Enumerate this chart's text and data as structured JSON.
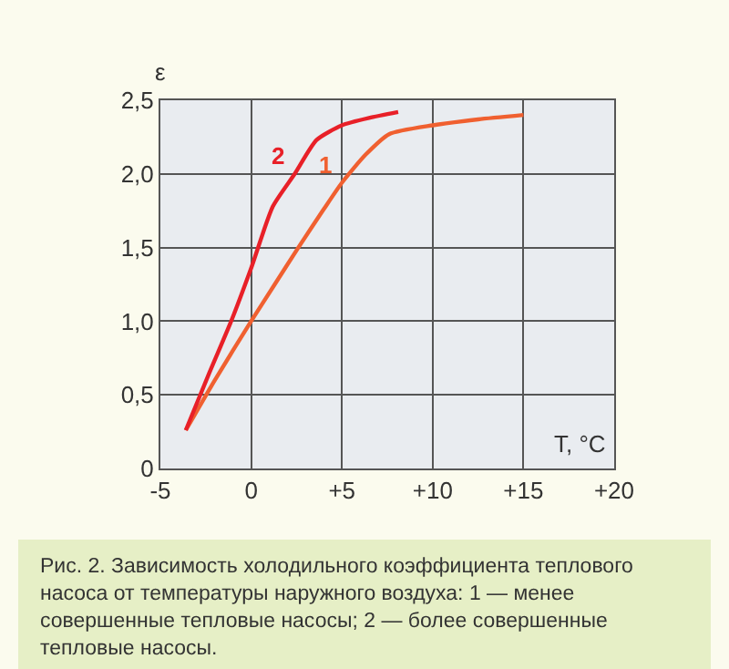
{
  "chart_data": {
    "type": "line",
    "xlabel": "T, °C",
    "ylabel": "ε",
    "xlim": [
      -5,
      20
    ],
    "xticks": [
      -5,
      0,
      {
        "value": 5,
        "label": "+5"
      },
      {
        "value": 10,
        "label": "+10"
      },
      {
        "value": 15,
        "label": "+15"
      },
      {
        "value": 20,
        "label": "+20"
      }
    ],
    "ylim": [
      0,
      2.5
    ],
    "yticks": [
      {
        "value": 0,
        "label": "0"
      },
      {
        "value": 0.5,
        "label": "0,5"
      },
      {
        "value": 1,
        "label": "1,0"
      },
      {
        "value": 1.5,
        "label": "1,5"
      },
      {
        "value": 2,
        "label": "2,0"
      },
      {
        "value": 2.5,
        "label": "2,5"
      }
    ],
    "grid": true,
    "marker": "none",
    "line_style": "solid",
    "series": [
      {
        "name": "1",
        "color": "#f06030",
        "x": [
          -3.6,
          -2,
          0,
          1.3,
          2.6,
          4,
          5,
          6.3,
          7.6,
          10,
          12.5,
          15
        ],
        "values": [
          0.26,
          0.6,
          1.0,
          1.25,
          1.5,
          1.76,
          1.94,
          2.13,
          2.27,
          2.33,
          2.37,
          2.4
        ]
      },
      {
        "name": "2",
        "color": "#e82028",
        "x": [
          -3.6,
          -2.3,
          -1.1,
          0,
          1.2,
          2.4,
          3.6,
          5,
          6.5,
          8.1
        ],
        "values": [
          0.26,
          0.65,
          1.0,
          1.36,
          1.78,
          2.0,
          2.23,
          2.33,
          2.38,
          2.42
        ]
      }
    ],
    "annotations": [
      "Рис. 2. Зависимость холодильного коэффициента теплового насоса от температуры наружного воздуха: 1 — менее совершенные тепловые насосы; 2 — более совершенные тепловые насосы."
    ]
  }
}
